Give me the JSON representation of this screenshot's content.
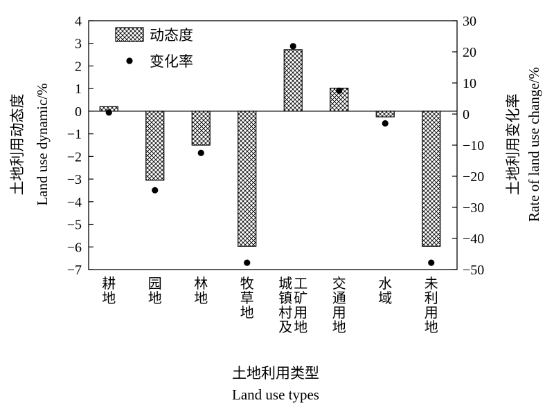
{
  "chart_data": {
    "type": "bar",
    "categories": [
      "耕地",
      "园地",
      "林地",
      "牧草地",
      "城镇村及\n工矿用地",
      "交通用地",
      "水域",
      "未利用地"
    ],
    "series": [
      {
        "name": "动态度",
        "kind": "bar",
        "axis": "left",
        "values": [
          0.2,
          -3.05,
          -1.5,
          -5.97,
          2.72,
          1.02,
          -0.25,
          -5.97
        ]
      },
      {
        "name": "变化率",
        "kind": "scatter",
        "axis": "right",
        "values": [
          0.5,
          -24.5,
          -12.5,
          -47.8,
          21.8,
          7.5,
          -3.0,
          -47.8
        ]
      }
    ],
    "ylabel_cn": "土地利用动态度",
    "ylabel_en": "Land use dynamic/%",
    "y2label_cn": "土地利用变化率",
    "y2label_en": "Rate of land use change/%",
    "xlabel_cn": "土地利用类型",
    "xlabel_en": "Land use types",
    "ylim": [
      -7,
      4
    ],
    "y2lim": [
      -50,
      30
    ],
    "yticks": [
      4,
      3,
      2,
      1,
      0,
      -1,
      -2,
      -3,
      -4,
      -5,
      -6,
      -7
    ],
    "y2ticks": [
      30,
      20,
      10,
      0,
      -10,
      -20,
      -30,
      -40,
      -50
    ],
    "legend_position": "top-left",
    "grid": false,
    "bar_pattern": "crosshatch"
  }
}
